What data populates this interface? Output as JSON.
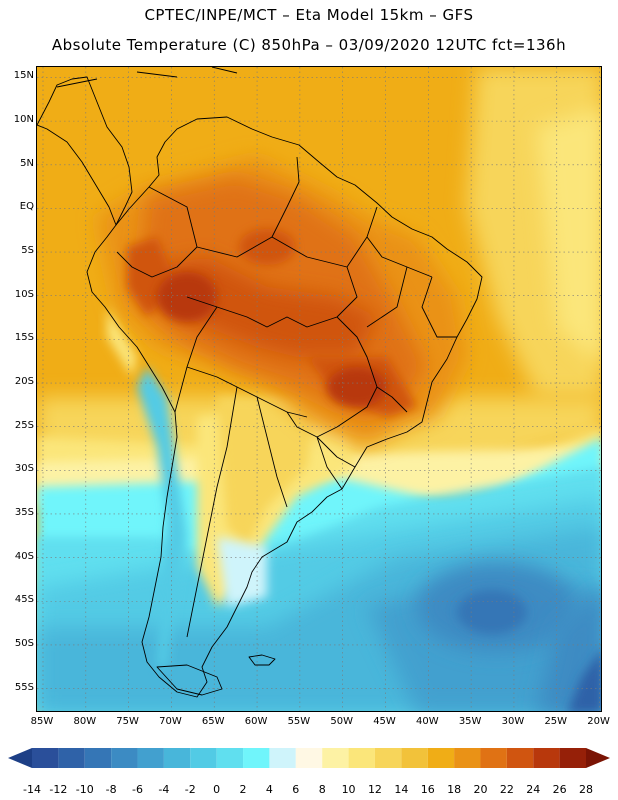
{
  "header": {
    "line1": "CPTEC/INPE/MCT –  Eta Model 15km – GFS",
    "line2": "Absolute Temperature (C) 850hPa – 03/09/2020 12UTC fct=136h"
  },
  "map": {
    "lat_labels": [
      "15N",
      "10N",
      "5N",
      "EQ",
      "5S",
      "10S",
      "15S",
      "20S",
      "25S",
      "30S",
      "35S",
      "40S",
      "45S",
      "50S",
      "55S"
    ],
    "lon_labels": [
      "85W",
      "80W",
      "75W",
      "70W",
      "65W",
      "60W",
      "55W",
      "50W",
      "45W",
      "40W",
      "35W",
      "30W",
      "25W",
      "20W"
    ],
    "extent": {
      "lon_min": -85.7,
      "lon_max": -19.6,
      "lat_min": -57.8,
      "lat_max": 16.2
    }
  },
  "colorbar": {
    "ticks": [
      "-14",
      "-12",
      "-10",
      "-8",
      "-6",
      "-4",
      "-2",
      "0",
      "2",
      "4",
      "6",
      "8",
      "10",
      "12",
      "14",
      "16",
      "18",
      "20",
      "22",
      "24",
      "26",
      "28"
    ],
    "colors": [
      "#2a4f9a",
      "#2f62a8",
      "#3576b6",
      "#3c8bc3",
      "#42a0cf",
      "#48b6da",
      "#52cbe5",
      "#60dfef",
      "#70f5fb",
      "#cff4fb",
      "#fff8e4",
      "#fdf2a4",
      "#fbe67a",
      "#f7d55a",
      "#f2c23a",
      "#f0ad16",
      "#ea9216",
      "#e07214",
      "#d05510",
      "#b8380c",
      "#962008"
    ],
    "under_color": "#1d3f86",
    "over_color": "#7a1404"
  }
}
